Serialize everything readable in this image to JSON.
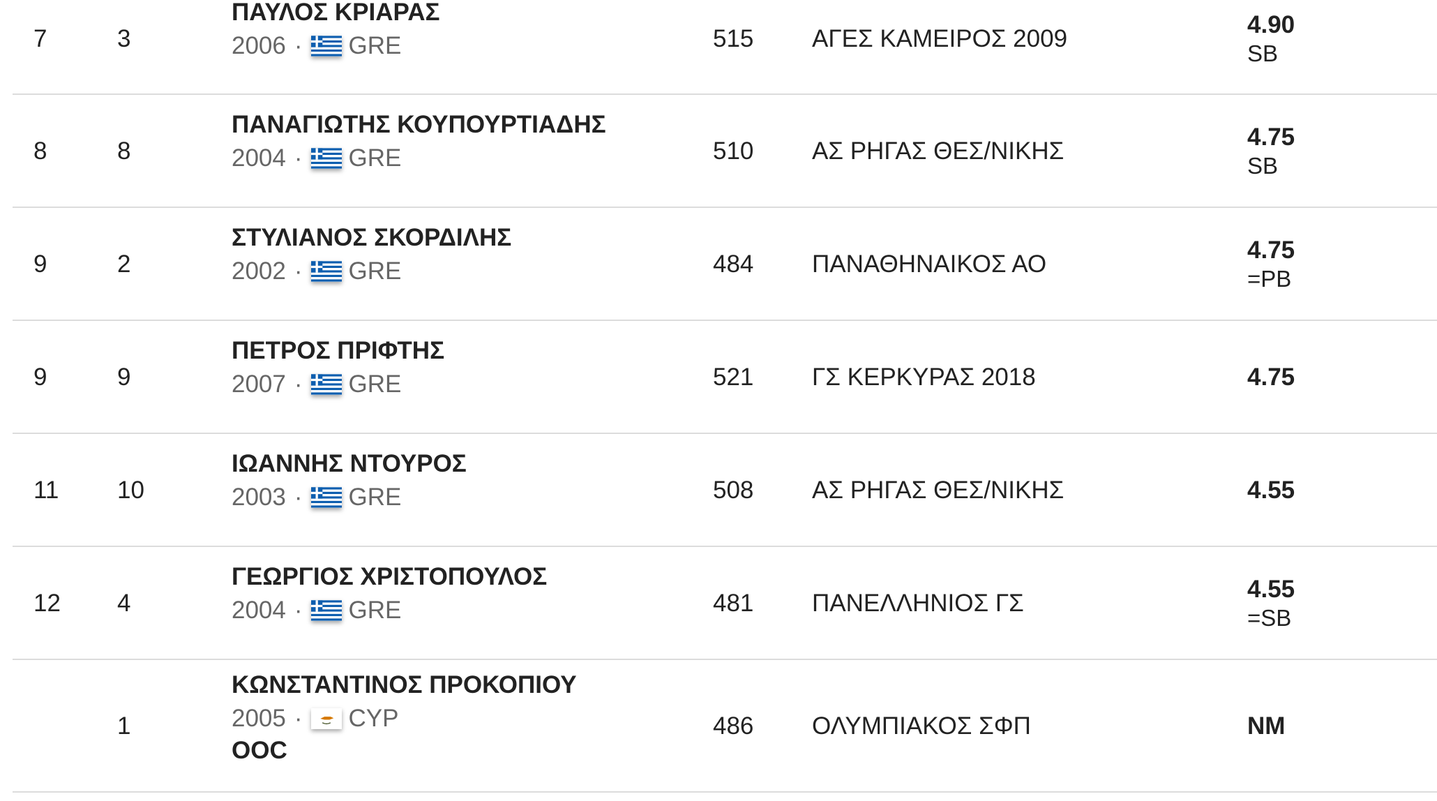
{
  "rows": [
    {
      "place": "7",
      "order": "3",
      "name": "ΠΑΥΛΟΣ ΚΡΙΑΡΑΣ",
      "year": "2006",
      "country": "GRE",
      "flag": "greece-flag-icon",
      "bib": "515",
      "club": "ΑΓΕΣ ΚΑΜΕΙΡΟΣ 2009",
      "mark": "4.90",
      "note": "SB",
      "ooc": ""
    },
    {
      "place": "8",
      "order": "8",
      "name": "ΠΑΝΑΓΙΩΤΗΣ ΚΟΥΠΟΥΡΤΙΑΔΗΣ",
      "year": "2004",
      "country": "GRE",
      "flag": "greece-flag-icon",
      "bib": "510",
      "club": "ΑΣ ΡΗΓΑΣ ΘΕΣ/ΝΙΚΗΣ",
      "mark": "4.75",
      "note": "SB",
      "ooc": ""
    },
    {
      "place": "9",
      "order": "2",
      "name": "ΣΤΥΛΙΑΝΟΣ ΣΚΟΡΔΙΛΗΣ",
      "year": "2002",
      "country": "GRE",
      "flag": "greece-flag-icon",
      "bib": "484",
      "club": "ΠΑΝΑΘΗΝΑΙΚΟΣ ΑΟ",
      "mark": "4.75",
      "note": "=PB",
      "ooc": ""
    },
    {
      "place": "9",
      "order": "9",
      "name": "ΠΕΤΡΟΣ ΠΡΙΦΤΗΣ",
      "year": "2007",
      "country": "GRE",
      "flag": "greece-flag-icon",
      "bib": "521",
      "club": "ΓΣ ΚΕΡΚΥΡΑΣ 2018",
      "mark": "4.75",
      "note": "",
      "ooc": ""
    },
    {
      "place": "11",
      "order": "10",
      "name": "ΙΩΑΝΝΗΣ ΝΤΟΥΡΟΣ",
      "year": "2003",
      "country": "GRE",
      "flag": "greece-flag-icon",
      "bib": "508",
      "club": "ΑΣ ΡΗΓΑΣ ΘΕΣ/ΝΙΚΗΣ",
      "mark": "4.55",
      "note": "",
      "ooc": ""
    },
    {
      "place": "12",
      "order": "4",
      "name": "ΓΕΩΡΓΙΟΣ ΧΡΙΣΤΟΠΟΥΛΟΣ",
      "year": "2004",
      "country": "GRE",
      "flag": "greece-flag-icon",
      "bib": "481",
      "club": "ΠΑΝΕΛΛΗΝΙΟΣ ΓΣ",
      "mark": "4.55",
      "note": "=SB",
      "ooc": ""
    },
    {
      "place": "",
      "order": "1",
      "name": "ΚΩΝΣΤΑΝΤΙΝΟΣ ΠΡΟΚΟΠΙΟΥ",
      "year": "2005",
      "country": "CYP",
      "flag": "cyprus-flag-icon",
      "bib": "486",
      "club": "ΟΛΥΜΠΙΑΚΟΣ ΣΦΠ",
      "mark": "NM",
      "note": "",
      "ooc": "OOC"
    }
  ],
  "separator": "·",
  "colors": {
    "text": "#222222",
    "muted": "#666666",
    "divider": "#dcdcdc",
    "greece_blue": "#0d5eaf",
    "cyprus_copper": "#d57800"
  }
}
